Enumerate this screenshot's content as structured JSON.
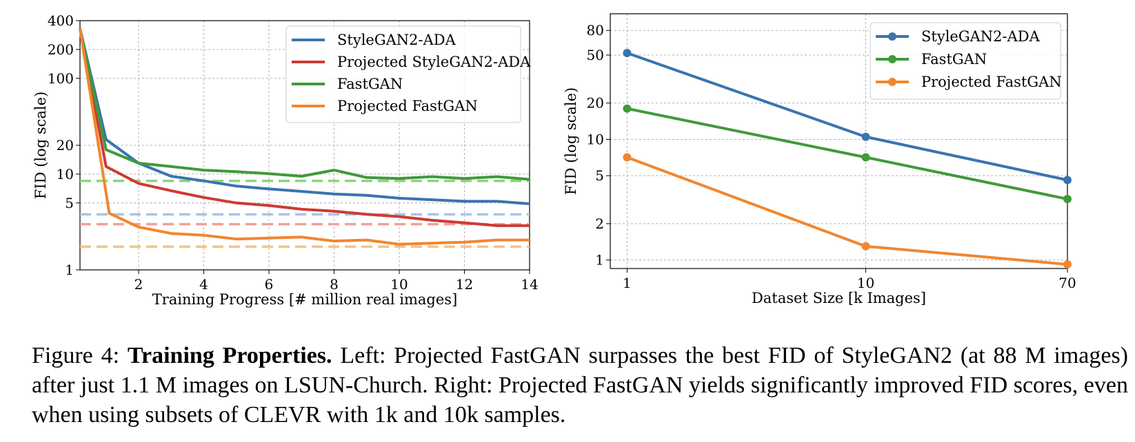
{
  "charts": [
    {
      "type": "line",
      "xlabel": "Training Progress [# million real images]",
      "ylabel": "FID  (log scale)",
      "yscale": "log",
      "xlim": [
        0.2,
        14
      ],
      "ylim": [
        1,
        400
      ],
      "xticks": [
        2,
        4,
        6,
        8,
        10,
        12,
        14
      ],
      "yticks": [
        1,
        5,
        10,
        20,
        100,
        200,
        400
      ],
      "grid": true,
      "legend": "top-right",
      "series": [
        {
          "name": "StyleGAN2-ADA",
          "color": "#3a74b0",
          "x": [
            0.2,
            1,
            2,
            3,
            4,
            5,
            6,
            7,
            8,
            9,
            10,
            11,
            12,
            13,
            14
          ],
          "y": [
            330,
            23,
            13,
            9.5,
            8.5,
            7.5,
            7.0,
            6.6,
            6.2,
            6.0,
            5.6,
            5.4,
            5.2,
            5.2,
            4.9
          ]
        },
        {
          "name": "Projected StyleGAN2-ADA",
          "color": "#cc3b33",
          "x": [
            0.2,
            1,
            2,
            3,
            4,
            5,
            6,
            7,
            8,
            9,
            10,
            11,
            12,
            13,
            14
          ],
          "y": [
            330,
            12,
            8,
            6.7,
            5.7,
            5.0,
            4.7,
            4.3,
            4.1,
            3.8,
            3.6,
            3.3,
            3.1,
            2.9,
            2.9
          ]
        },
        {
          "name": "FastGAN",
          "color": "#3f9a3a",
          "x": [
            0.2,
            1,
            2,
            3,
            4,
            5,
            6,
            7,
            8,
            9,
            10,
            11,
            12,
            13,
            14
          ],
          "y": [
            330,
            18,
            13,
            12,
            11,
            10.6,
            10.1,
            9.5,
            11,
            9.2,
            9.0,
            9.4,
            9.0,
            9.4,
            8.8
          ]
        },
        {
          "name": "Projected FastGAN",
          "color": "#f2862e",
          "x": [
            0.2,
            1.1,
            2,
            3,
            4,
            5,
            6,
            7,
            8,
            9,
            10,
            11,
            12,
            13,
            14
          ],
          "y": [
            330,
            3.9,
            2.8,
            2.4,
            2.3,
            2.1,
            2.15,
            2.2,
            2.0,
            2.05,
            1.85,
            1.9,
            1.95,
            2.05,
            2.05
          ]
        }
      ],
      "reference_lines": [
        {
          "y": 8.5,
          "color": "#8fd27f"
        },
        {
          "y": 3.8,
          "color": "#a9c3e7"
        },
        {
          "y": 3.0,
          "color": "#f0a09c"
        },
        {
          "y": 1.75,
          "color": "#f8c187"
        }
      ]
    },
    {
      "type": "line",
      "xlabel": "Dataset Size [k Images]",
      "ylabel": "FID  (log scale)",
      "xscale": "log",
      "yscale": "log",
      "xlim": [
        0.85,
        70
      ],
      "ylim": [
        0.85,
        110
      ],
      "xticks": [
        1,
        10,
        70
      ],
      "yticks": [
        1,
        2,
        5,
        10,
        20,
        50,
        80
      ],
      "grid": true,
      "legend": "top-right",
      "series": [
        {
          "name": "StyleGAN2-ADA",
          "color": "#3a74b0",
          "x": [
            1,
            10,
            70
          ],
          "y": [
            52,
            10.5,
            4.6
          ]
        },
        {
          "name": "FastGAN",
          "color": "#3f9a3a",
          "x": [
            1,
            10,
            70
          ],
          "y": [
            18,
            7.1,
            3.2
          ]
        },
        {
          "name": "Projected FastGAN",
          "color": "#f2862e",
          "x": [
            1,
            10,
            70
          ],
          "y": [
            7.1,
            1.3,
            0.92
          ]
        }
      ]
    }
  ],
  "caption": {
    "label": "Figure 4:",
    "title": "Training Properties.",
    "text": "Left: Projected FastGAN surpasses the best FID of StyleGAN2 (at 88 M images) after just 1.1 M images on LSUN-Church.  Right: Projected FastGAN yields significantly improved FID scores, even when using subsets of CLEVR with 1k and 10k samples."
  }
}
